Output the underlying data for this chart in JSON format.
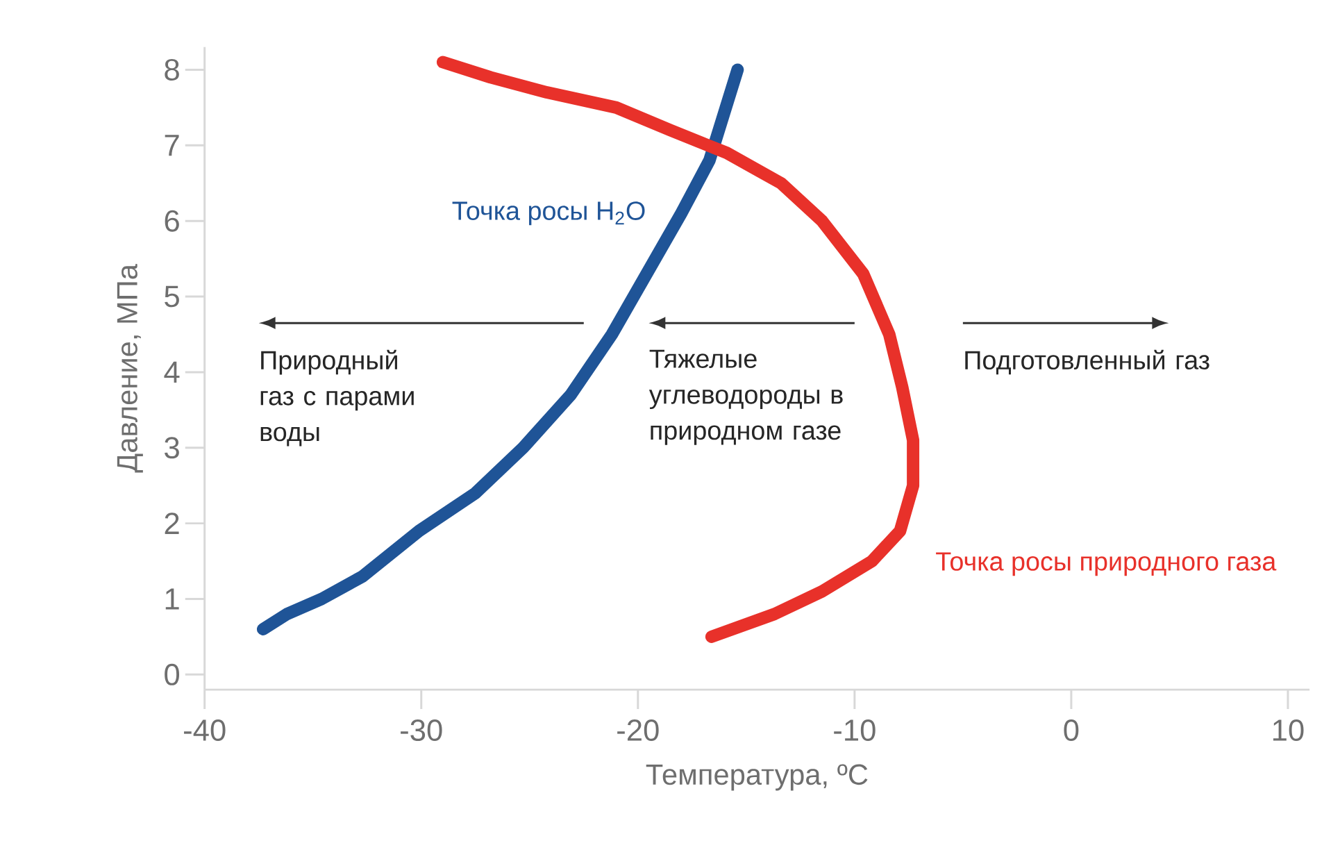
{
  "chart_data": {
    "type": "line",
    "xlabel": "Температура, ºС",
    "ylabel": "Давление, МПа",
    "xlim": [
      -40,
      11
    ],
    "ylim": [
      -0.2,
      8.3
    ],
    "xticks": [
      -40,
      -30,
      -20,
      -10,
      0,
      10
    ],
    "yticks": [
      0,
      1,
      2,
      3,
      4,
      5,
      6,
      7,
      8
    ],
    "grid": false,
    "legend": false,
    "marker": "none",
    "line_style": "solid",
    "series": [
      {
        "name": "Точка росы H$_{2}$O",
        "color": "#1f5497",
        "x": [
          -37.3,
          -36.2,
          -34.6,
          -32.7,
          -30.1,
          -27.5,
          -25.3,
          -23.1,
          -21.2,
          -19.6,
          -18.0,
          -16.7,
          -15.4
        ],
        "values": [
          0.6,
          0.8,
          1.0,
          1.3,
          1.9,
          2.4,
          3.0,
          3.7,
          4.5,
          5.3,
          6.1,
          6.8,
          8.0
        ]
      },
      {
        "name": "Точка росы природного газа",
        "color": "#e8312a",
        "x": [
          -29.0,
          -26.8,
          -24.2,
          -21.0,
          -18.5,
          -15.9,
          -13.4,
          -11.5,
          -9.6,
          -8.4,
          -7.8,
          -7.3,
          -7.3,
          -7.9,
          -9.2,
          -11.5,
          -13.7,
          -16.6
        ],
        "values": [
          8.1,
          7.9,
          7.7,
          7.5,
          7.2,
          6.9,
          6.5,
          6.0,
          5.3,
          4.5,
          3.8,
          3.1,
          2.5,
          1.9,
          1.5,
          1.1,
          0.8,
          0.5
        ]
      }
    ],
    "annotations": [
      "Природный газ с парами воды",
      "Тяжелые углеводороды в природном газе",
      "Подготовленный газ"
    ]
  }
}
